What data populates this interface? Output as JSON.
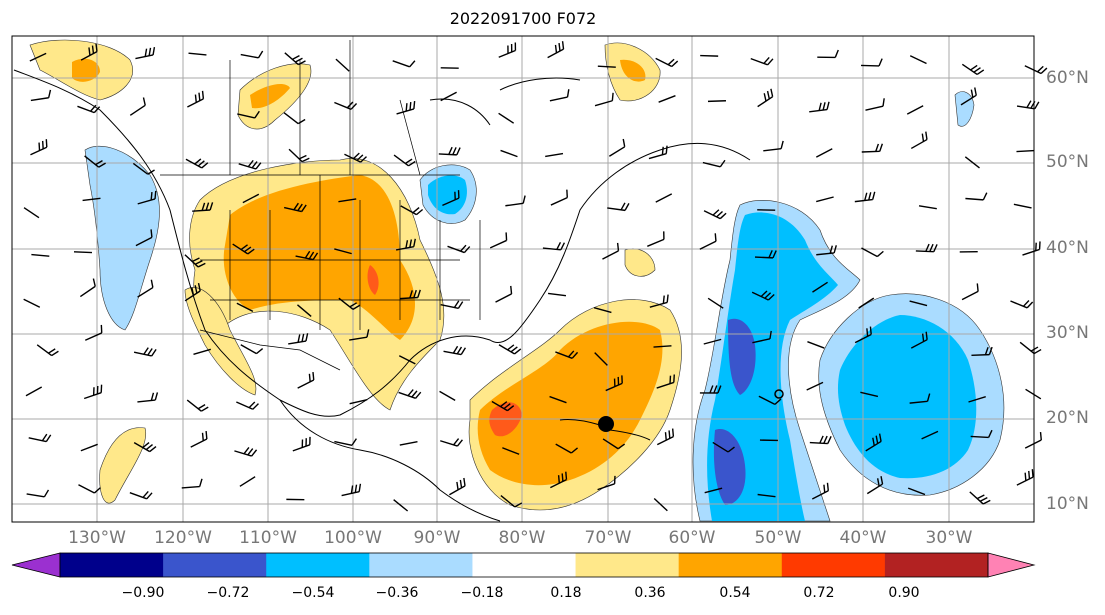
{
  "title": "2022091700 F072",
  "lat_labels": [
    "60°N",
    "50°N",
    "40°N",
    "30°N",
    "20°N",
    "10°N"
  ],
  "lon_labels": [
    "130°W",
    "120°W",
    "110°W",
    "100°W",
    "90°W",
    "80°W",
    "70°W",
    "60°W",
    "50°W",
    "40°W",
    "30°W"
  ],
  "colorbar": {
    "ticks": [
      "−0.90",
      "−0.72",
      "−0.54",
      "−0.36",
      "−0.18",
      "0.18",
      "0.36",
      "0.54",
      "0.72",
      "0.90"
    ],
    "colors": [
      "#9b30d0",
      "#00008b",
      "#3a55cc",
      "#00bfff",
      "#aadcff",
      "#ffffff",
      "#ffe88a",
      "#ffa500",
      "#ff3a00",
      "#b22222",
      "#ff82b4"
    ]
  },
  "map_colors": {
    "ocean": "#ffffff",
    "pos_light": "#ffe88a",
    "pos_mid": "#ffa500",
    "pos_strong": "#ff5a1a",
    "neg_light": "#aadcff",
    "neg_mid": "#00bfff",
    "neg_strong": "#3a55cc",
    "grid": "#a9a9a9"
  }
}
